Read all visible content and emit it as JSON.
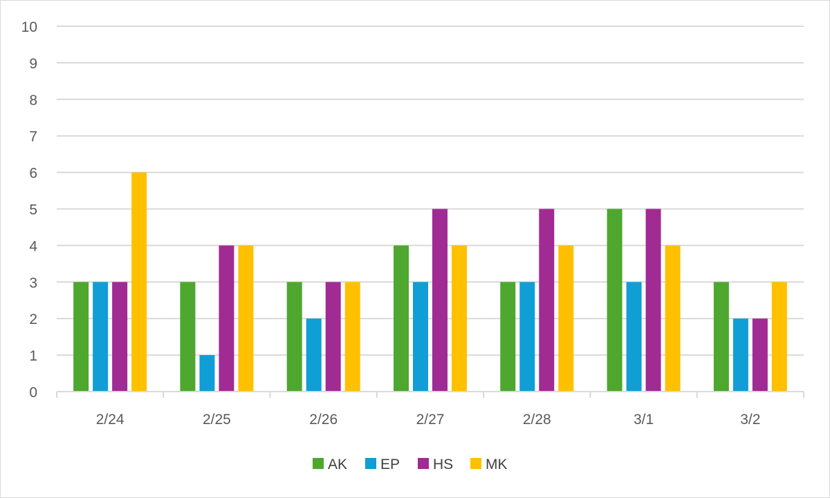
{
  "chart_data": {
    "type": "bar",
    "title": "",
    "xlabel": "",
    "ylabel": "",
    "categories": [
      "2/24",
      "2/25",
      "2/26",
      "2/27",
      "2/28",
      "3/1",
      "3/2"
    ],
    "series": [
      {
        "name": "AK",
        "color": "#4ea72e",
        "values": [
          3,
          3,
          3,
          4,
          3,
          5,
          3
        ]
      },
      {
        "name": "EP",
        "color": "#0f9ed5",
        "values": [
          3,
          1,
          2,
          3,
          3,
          3,
          2
        ]
      },
      {
        "name": "HS",
        "color": "#a02b93",
        "values": [
          3,
          4,
          3,
          5,
          5,
          5,
          2
        ]
      },
      {
        "name": "MK",
        "color": "#ffc000",
        "values": [
          6,
          4,
          3,
          4,
          4,
          4,
          3
        ]
      }
    ],
    "ylim": [
      0,
      10
    ],
    "yticks": [
      0,
      1,
      2,
      3,
      4,
      5,
      6,
      7,
      8,
      9,
      10
    ],
    "grid": true,
    "legend": "bottom"
  }
}
